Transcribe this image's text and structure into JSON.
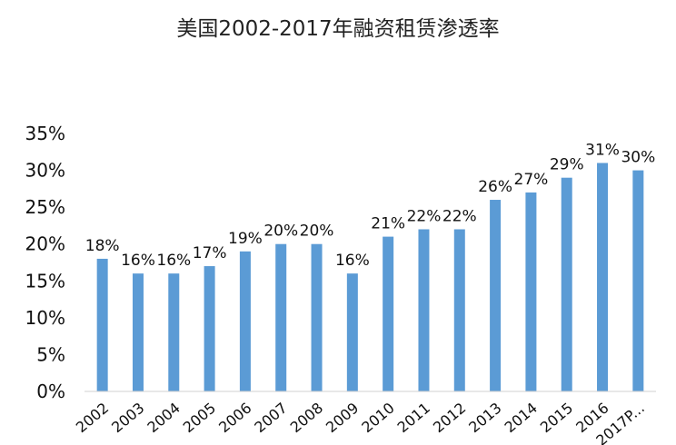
{
  "chart_data": {
    "type": "bar",
    "title": "美国2002-2017年融资租赁渗透率",
    "categories": [
      "2002",
      "2003",
      "2004",
      "2005",
      "2006",
      "2007",
      "2008",
      "2009",
      "2010",
      "2011",
      "2012",
      "2013",
      "2014",
      "2015",
      "2016",
      "2017P..."
    ],
    "values": [
      18,
      16,
      16,
      17,
      19,
      20,
      20,
      16,
      21,
      22,
      22,
      26,
      27,
      29,
      31,
      30
    ],
    "data_labels": [
      "18%",
      "16%",
      "16%",
      "17%",
      "19%",
      "20%",
      "20%",
      "16%",
      "21%",
      "22%",
      "22%",
      "26%",
      "27%",
      "29%",
      "31%",
      "30%"
    ],
    "y_ticks": [
      {
        "value": 0,
        "label": "0%"
      },
      {
        "value": 5,
        "label": "5%"
      },
      {
        "value": 10,
        "label": "10%"
      },
      {
        "value": 15,
        "label": "15%"
      },
      {
        "value": 20,
        "label": "20%"
      },
      {
        "value": 25,
        "label": "25%"
      },
      {
        "value": 30,
        "label": "30%"
      },
      {
        "value": 35,
        "label": "35%"
      }
    ],
    "ylim": [
      0,
      35
    ],
    "xlabel": "",
    "ylabel": "",
    "grid": false,
    "legend": "none",
    "bar_color": "#5B9BD5"
  }
}
